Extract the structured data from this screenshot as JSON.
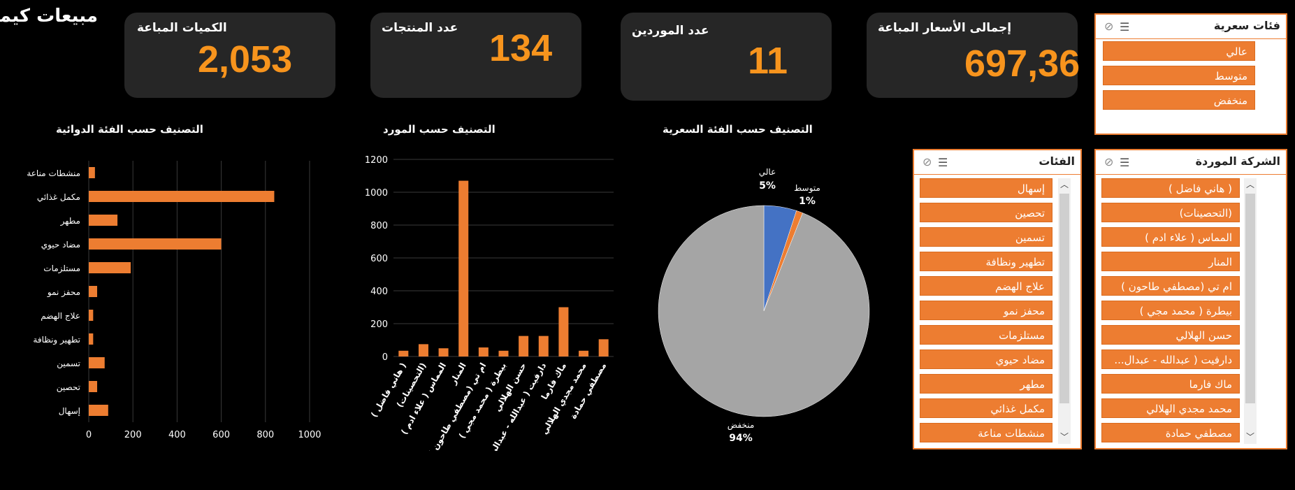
{
  "dashboard_title": "مبيعات كيميت",
  "kpis": {
    "quantity": {
      "label": "الكميات المباعة",
      "value": "2,053"
    },
    "products": {
      "label": "عدد المنتجات",
      "value": "134"
    },
    "suppliers": {
      "label": "عدد الموردين",
      "value": "11"
    },
    "total_price": {
      "label": "إجمالى الأسعار المباعة",
      "value": "697,36"
    }
  },
  "slicers": {
    "price_category": {
      "title": "فئات سعرية",
      "items": [
        "عالي",
        "متوسط",
        "منخفض"
      ]
    },
    "categories": {
      "title": "الفئات",
      "items": [
        "إسهال",
        "تحصين",
        "تسمين",
        "تطهير ونظافة",
        "علاج الهضم",
        "محفز نمو",
        "مستلزمات",
        "مضاد حيوي",
        "مطهر",
        "مكمل غذائي",
        "منشطات مناعة"
      ]
    },
    "supplier": {
      "title": "الشركة الموردة",
      "items": [
        "( هاني فاضل )",
        "(التحصينات)",
        "المماس ( علاء ادم )",
        "المنار",
        "ام تي (مصطفي طاحون )",
        "بيطرة ( محمد مجي )",
        "حسن الهلالي",
        "دارفيت ( عبدالله - عبدال...",
        "ماك فارما",
        "محمد مجدي الهلالي",
        "مصطفي حمادة"
      ]
    }
  },
  "chart_data": [
    {
      "type": "bar",
      "orientation": "horizontal",
      "title": "التصنيف حسب الفئة الدوائية",
      "categories": [
        "منشطات مناعة",
        "مكمل غذائي",
        "مطهر",
        "مضاد حيوي",
        "مستلزمات",
        "محفز نمو",
        "علاج الهضم",
        "تطهير ونظافة",
        "تسمين",
        "تحصين",
        "إسهال"
      ],
      "values": [
        28,
        840,
        130,
        600,
        190,
        38,
        20,
        20,
        72,
        38,
        88
      ],
      "xlim": [
        0,
        1000
      ],
      "xticks": [
        "0",
        "200",
        "400",
        "600",
        "800",
        "1000"
      ],
      "grid": true,
      "color": "#ed7d31"
    },
    {
      "type": "bar",
      "title": "التصنيف حسب المورد",
      "categories": [
        "( هاني فاضل )",
        "(التحصينات)",
        "المماس ( علاء ادم )",
        "المنار",
        "ام تي (مصطفي طاحون )",
        "بيطرة ( محمد مجي )",
        "حسن الهلالي",
        "دارفيت ( عبدالله - عبدالرحيم )",
        "ماك فارما",
        "محمد مجدي الهلالي",
        "مصطفي حمادة"
      ],
      "values": [
        35,
        75,
        50,
        1070,
        55,
        35,
        125,
        125,
        300,
        35,
        105
      ],
      "ylim": [
        0,
        1200
      ],
      "yticks": [
        "0",
        "200",
        "400",
        "600",
        "800",
        "1000",
        "1200"
      ],
      "grid": true,
      "color": "#ed7d31"
    },
    {
      "type": "pie",
      "title": "التصنيف حسب الفئة السعرية",
      "slices": [
        {
          "label": "عالي",
          "pct_label": "5%",
          "value": 5,
          "color": "#4472c4"
        },
        {
          "label": "متوسط",
          "pct_label": "1%",
          "value": 1,
          "color": "#ed7d31"
        },
        {
          "label": "منخفض",
          "pct_label": "94%",
          "value": 94,
          "color": "#a5a5a5"
        }
      ]
    }
  ]
}
